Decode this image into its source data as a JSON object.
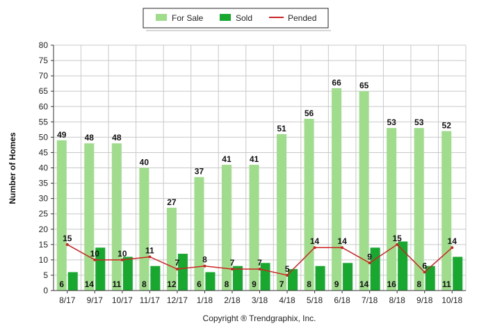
{
  "chart_data": {
    "type": "bar",
    "categories": [
      "8/17",
      "9/17",
      "10/17",
      "11/17",
      "12/17",
      "1/18",
      "2/18",
      "3/18",
      "4/18",
      "5/18",
      "6/18",
      "7/18",
      "8/18",
      "9/18",
      "10/18"
    ],
    "series": [
      {
        "name": "For Sale",
        "type": "bar",
        "color": "#9fdc8c",
        "values": [
          49,
          48,
          48,
          40,
          27,
          37,
          41,
          41,
          51,
          56,
          66,
          65,
          53,
          53,
          52
        ]
      },
      {
        "name": "Sold",
        "type": "bar",
        "color": "#18a82f",
        "values": [
          6,
          14,
          11,
          8,
          12,
          6,
          8,
          9,
          7,
          8,
          9,
          14,
          16,
          8,
          11
        ]
      },
      {
        "name": "Pended",
        "type": "line",
        "color": "#cc2222",
        "values": [
          15,
          10,
          10,
          11,
          7,
          8,
          7,
          7,
          5,
          14,
          14,
          9,
          15,
          6,
          14
        ]
      }
    ],
    "ylabel": "Number of Homes",
    "ylim": [
      0,
      80
    ],
    "yticks": [
      0,
      5,
      10,
      15,
      20,
      25,
      30,
      35,
      40,
      45,
      50,
      55,
      60,
      65,
      70,
      75,
      80
    ],
    "grid": true,
    "legend_position": "top-center"
  },
  "footer": {
    "copyright": "Copyright ® Trendgraphix, Inc."
  }
}
